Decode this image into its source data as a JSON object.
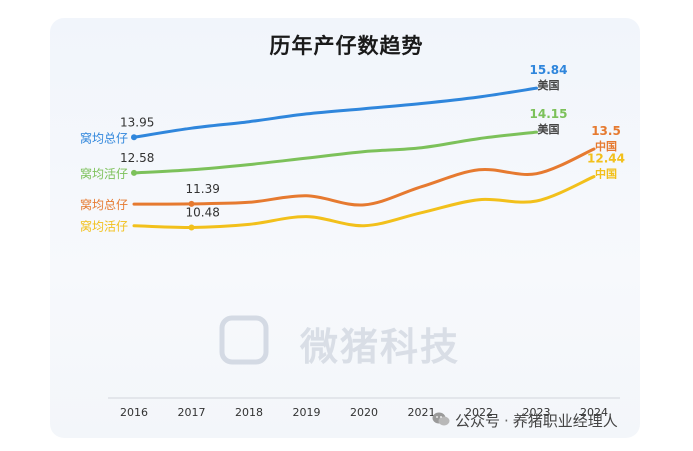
{
  "chart_data": {
    "type": "line",
    "title": "历年产仔数趋势",
    "categories": [
      "2016",
      "2017",
      "2018",
      "2019",
      "2020",
      "2021",
      "2022",
      "2023",
      "2024"
    ],
    "series": [
      {
        "name": "窝均总仔",
        "country": "美国",
        "color": "#2f86dc",
        "values": [
          13.95,
          14.3,
          14.55,
          14.85,
          15.05,
          15.25,
          15.5,
          15.84,
          null
        ],
        "labels": {
          "2016": "13.95",
          "2023": "15.84"
        }
      },
      {
        "name": "窝均活仔",
        "country": "美国",
        "color": "#7cc15a",
        "values": [
          12.58,
          12.7,
          12.9,
          13.15,
          13.4,
          13.55,
          13.9,
          14.15,
          null
        ],
        "labels": {
          "2016": "12.58",
          "2023": "14.15"
        }
      },
      {
        "name": "窝均总仔",
        "country": "中国",
        "color": "#e67a30",
        "values": [
          11.38,
          11.39,
          11.45,
          11.7,
          11.35,
          12.05,
          12.7,
          12.55,
          13.5
        ],
        "labels": {
          "2017": "11.39",
          "2024": "13.5"
        }
      },
      {
        "name": "窝均活仔",
        "country": "中国",
        "color": "#f2c01b",
        "values": [
          10.55,
          10.48,
          10.6,
          10.9,
          10.55,
          11.05,
          11.55,
          11.5,
          12.44
        ],
        "labels": {
          "2017": "10.48",
          "2024": "12.44"
        }
      }
    ],
    "grid": false,
    "legend": "inline at line starts"
  },
  "watermark": {
    "logo_text": "微猪科技",
    "account_prefix": "公众号",
    "separator": "·",
    "account_name": "养猪职业经理人"
  }
}
